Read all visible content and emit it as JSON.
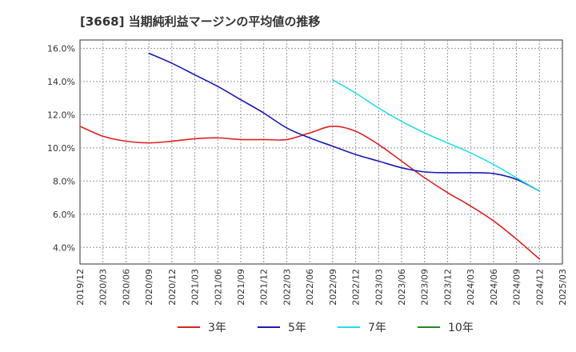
{
  "title": "[3668]  当期純利益マージンの平均値の推移",
  "chart_data": {
    "type": "line",
    "title": "[3668]  当期純利益マージンの平均値の推移",
    "xlabel": "",
    "ylabel": "",
    "x_ticks": [
      "2019/12",
      "2020/03",
      "2020/06",
      "2020/09",
      "2020/12",
      "2021/03",
      "2021/06",
      "2021/09",
      "2021/12",
      "2022/03",
      "2022/06",
      "2022/09",
      "2022/12",
      "2023/03",
      "2023/06",
      "2023/09",
      "2023/12",
      "2024/03",
      "2024/06",
      "2024/09",
      "2024/12",
      "2025/03"
    ],
    "y_ticks": [
      "4.0%",
      "6.0%",
      "8.0%",
      "10.0%",
      "12.0%",
      "14.0%",
      "16.0%"
    ],
    "ylim": [
      3.0,
      16.5
    ],
    "y_unit": "%",
    "grid": true,
    "legend_position": "bottom",
    "series": [
      {
        "name": "3年",
        "color": "#dd2222",
        "x": [
          "2019/12",
          "2020/03",
          "2020/06",
          "2020/09",
          "2020/12",
          "2021/03",
          "2021/06",
          "2021/09",
          "2021/12",
          "2022/03",
          "2022/06",
          "2022/09",
          "2022/12",
          "2023/03",
          "2023/06",
          "2023/09",
          "2023/12",
          "2024/03",
          "2024/06",
          "2024/09",
          "2024/12"
        ],
        "values": [
          11.3,
          10.7,
          10.4,
          10.3,
          10.4,
          10.55,
          10.6,
          10.5,
          10.5,
          10.5,
          10.9,
          11.3,
          11.0,
          10.2,
          9.2,
          8.2,
          7.3,
          6.5,
          5.6,
          4.5,
          3.3
        ]
      },
      {
        "name": "5年",
        "color": "#1a1ab4",
        "x": [
          "2020/09",
          "2020/12",
          "2021/03",
          "2021/06",
          "2021/09",
          "2021/12",
          "2022/03",
          "2022/06",
          "2022/09",
          "2022/12",
          "2023/03",
          "2023/06",
          "2023/09",
          "2023/12",
          "2024/03",
          "2024/06",
          "2024/09",
          "2024/12"
        ],
        "values": [
          15.7,
          15.1,
          14.4,
          13.7,
          12.9,
          12.1,
          11.2,
          10.6,
          10.1,
          9.6,
          9.2,
          8.8,
          8.55,
          8.5,
          8.5,
          8.45,
          8.1,
          7.4
        ]
      },
      {
        "name": "7年",
        "color": "#22e0e8",
        "x": [
          "2022/09",
          "2022/12",
          "2023/03",
          "2023/06",
          "2023/09",
          "2023/12",
          "2024/03",
          "2024/06",
          "2024/09",
          "2024/12"
        ],
        "values": [
          14.1,
          13.3,
          12.4,
          11.6,
          10.9,
          10.3,
          9.7,
          9.0,
          8.2,
          7.4
        ]
      },
      {
        "name": "10年",
        "color": "#228822",
        "x": [],
        "values": []
      }
    ]
  }
}
